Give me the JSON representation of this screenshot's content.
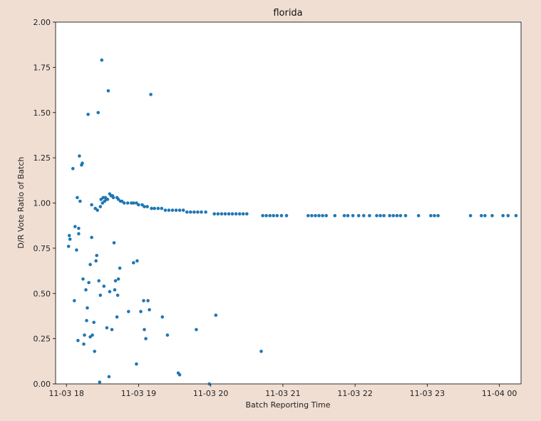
{
  "chart_data": {
    "type": "scatter",
    "title": "florida",
    "xlabel": "Batch Reporting Time",
    "ylabel": "D/R Vote Ratio of Batch",
    "x_unit": "hours",
    "xlim": [
      17.85,
      24.3
    ],
    "ylim": [
      0.0,
      2.0
    ],
    "xticks": [
      {
        "value": 18,
        "label": "11-03 18"
      },
      {
        "value": 19,
        "label": "11-03 19"
      },
      {
        "value": 20,
        "label": "11-03 20"
      },
      {
        "value": 21,
        "label": "11-03 21"
      },
      {
        "value": 22,
        "label": "11-03 22"
      },
      {
        "value": 23,
        "label": "11-03 23"
      },
      {
        "value": 24,
        "label": "11-04 00"
      }
    ],
    "yticks": [
      {
        "value": 0.0,
        "label": "0.00"
      },
      {
        "value": 0.25,
        "label": "0.25"
      },
      {
        "value": 0.5,
        "label": "0.50"
      },
      {
        "value": 0.75,
        "label": "0.75"
      },
      {
        "value": 1.0,
        "label": "1.00"
      },
      {
        "value": 1.25,
        "label": "1.25"
      },
      {
        "value": 1.5,
        "label": "1.50"
      },
      {
        "value": 1.75,
        "label": "1.75"
      },
      {
        "value": 2.0,
        "label": "2.00"
      }
    ],
    "marker_color": "#1f77b4",
    "grid": false,
    "points": [
      [
        18.03,
        0.76
      ],
      [
        18.04,
        0.82
      ],
      [
        18.05,
        0.8
      ],
      [
        18.09,
        1.19
      ],
      [
        18.11,
        0.46
      ],
      [
        18.12,
        0.87
      ],
      [
        18.14,
        0.74
      ],
      [
        18.15,
        1.03
      ],
      [
        18.16,
        0.24
      ],
      [
        18.17,
        0.83
      ],
      [
        18.17,
        0.86
      ],
      [
        18.18,
        1.26
      ],
      [
        18.19,
        1.01
      ],
      [
        18.21,
        1.21
      ],
      [
        18.22,
        1.22
      ],
      [
        18.23,
        0.58
      ],
      [
        18.24,
        0.22
      ],
      [
        18.25,
        0.27
      ],
      [
        18.27,
        0.52
      ],
      [
        18.28,
        0.35
      ],
      [
        18.29,
        0.42
      ],
      [
        18.3,
        1.49
      ],
      [
        18.31,
        0.56
      ],
      [
        18.33,
        0.26
      ],
      [
        18.33,
        0.66
      ],
      [
        18.35,
        0.81
      ],
      [
        18.35,
        0.99
      ],
      [
        18.36,
        0.27
      ],
      [
        18.38,
        0.34
      ],
      [
        18.39,
        0.18
      ],
      [
        18.4,
        0.97
      ],
      [
        18.41,
        0.68
      ],
      [
        18.42,
        0.71
      ],
      [
        18.43,
        0.96
      ],
      [
        18.44,
        1.5
      ],
      [
        18.45,
        0.57
      ],
      [
        18.46,
        0.01
      ],
      [
        18.47,
        0.49
      ],
      [
        18.48,
        1.02
      ],
      [
        18.49,
        1.79
      ],
      [
        18.51,
        1.03
      ],
      [
        18.52,
        0.54
      ],
      [
        18.54,
        1.03
      ],
      [
        18.55,
        1.02
      ],
      [
        18.56,
        0.31
      ],
      [
        18.58,
        1.62
      ],
      [
        18.59,
        0.04
      ],
      [
        18.6,
        0.51
      ],
      [
        18.62,
        1.04
      ],
      [
        18.63,
        0.3
      ],
      [
        18.64,
        1.04
      ],
      [
        18.66,
        0.78
      ],
      [
        18.67,
        0.52
      ],
      [
        18.68,
        0.57
      ],
      [
        18.7,
        0.37
      ],
      [
        18.71,
        0.49
      ],
      [
        18.72,
        0.58
      ],
      [
        18.74,
        0.64
      ],
      [
        18.77,
        1.01
      ],
      [
        18.86,
        0.4
      ],
      [
        18.93,
        0.67
      ],
      [
        18.97,
        0.11
      ],
      [
        18.98,
        0.68
      ],
      [
        19.03,
        0.4
      ],
      [
        19.07,
        0.46
      ],
      [
        19.08,
        0.3
      ],
      [
        19.1,
        0.25
      ],
      [
        19.13,
        0.46
      ],
      [
        19.15,
        0.41
      ],
      [
        19.17,
        1.6
      ],
      [
        19.33,
        0.37
      ],
      [
        19.4,
        0.27
      ],
      [
        19.55,
        0.06
      ],
      [
        19.57,
        0.05
      ],
      [
        19.8,
        0.3
      ],
      [
        19.98,
        0.0
      ],
      [
        20.07,
        0.38
      ],
      [
        20.7,
        0.18
      ],
      [
        18.47,
        0.98
      ],
      [
        18.5,
        1.0
      ],
      [
        18.53,
        1.01
      ],
      [
        18.57,
        1.02
      ],
      [
        18.6,
        1.05
      ],
      [
        18.65,
        1.03
      ],
      [
        18.7,
        1.03
      ],
      [
        18.72,
        1.02
      ],
      [
        18.75,
        1.01
      ],
      [
        18.8,
        1.0
      ],
      [
        18.85,
        1.0
      ],
      [
        18.9,
        1.0
      ],
      [
        18.93,
        1.0
      ],
      [
        18.97,
        1.0
      ],
      [
        19.0,
        0.99
      ],
      [
        19.05,
        0.99
      ],
      [
        19.08,
        0.98
      ],
      [
        19.12,
        0.98
      ],
      [
        19.18,
        0.97
      ],
      [
        19.22,
        0.97
      ],
      [
        19.27,
        0.97
      ],
      [
        19.32,
        0.97
      ],
      [
        19.37,
        0.96
      ],
      [
        19.42,
        0.96
      ],
      [
        19.47,
        0.96
      ],
      [
        19.52,
        0.96
      ],
      [
        19.57,
        0.96
      ],
      [
        19.62,
        0.96
      ],
      [
        19.67,
        0.95
      ],
      [
        19.72,
        0.95
      ],
      [
        19.77,
        0.95
      ],
      [
        19.82,
        0.95
      ],
      [
        19.87,
        0.95
      ],
      [
        19.93,
        0.95
      ],
      [
        20.05,
        0.94
      ],
      [
        20.1,
        0.94
      ],
      [
        20.15,
        0.94
      ],
      [
        20.2,
        0.94
      ],
      [
        20.25,
        0.94
      ],
      [
        20.3,
        0.94
      ],
      [
        20.35,
        0.94
      ],
      [
        20.4,
        0.94
      ],
      [
        20.45,
        0.94
      ],
      [
        20.5,
        0.94
      ],
      [
        20.72,
        0.93
      ],
      [
        20.77,
        0.93
      ],
      [
        20.82,
        0.93
      ],
      [
        20.87,
        0.93
      ],
      [
        20.92,
        0.93
      ],
      [
        20.98,
        0.93
      ],
      [
        21.05,
        0.93
      ],
      [
        21.35,
        0.93
      ],
      [
        21.4,
        0.93
      ],
      [
        21.45,
        0.93
      ],
      [
        21.5,
        0.93
      ],
      [
        21.55,
        0.93
      ],
      [
        21.6,
        0.93
      ],
      [
        21.72,
        0.93
      ],
      [
        21.85,
        0.93
      ],
      [
        21.9,
        0.93
      ],
      [
        21.97,
        0.93
      ],
      [
        22.05,
        0.93
      ],
      [
        22.12,
        0.93
      ],
      [
        22.2,
        0.93
      ],
      [
        22.3,
        0.93
      ],
      [
        22.35,
        0.93
      ],
      [
        22.4,
        0.93
      ],
      [
        22.48,
        0.93
      ],
      [
        22.53,
        0.93
      ],
      [
        22.58,
        0.93
      ],
      [
        22.63,
        0.93
      ],
      [
        22.7,
        0.93
      ],
      [
        22.88,
        0.93
      ],
      [
        23.05,
        0.93
      ],
      [
        23.1,
        0.93
      ],
      [
        23.15,
        0.93
      ],
      [
        23.6,
        0.93
      ],
      [
        23.75,
        0.93
      ],
      [
        23.8,
        0.93
      ],
      [
        23.9,
        0.93
      ],
      [
        24.05,
        0.93
      ],
      [
        24.12,
        0.93
      ],
      [
        24.23,
        0.93
      ]
    ]
  }
}
